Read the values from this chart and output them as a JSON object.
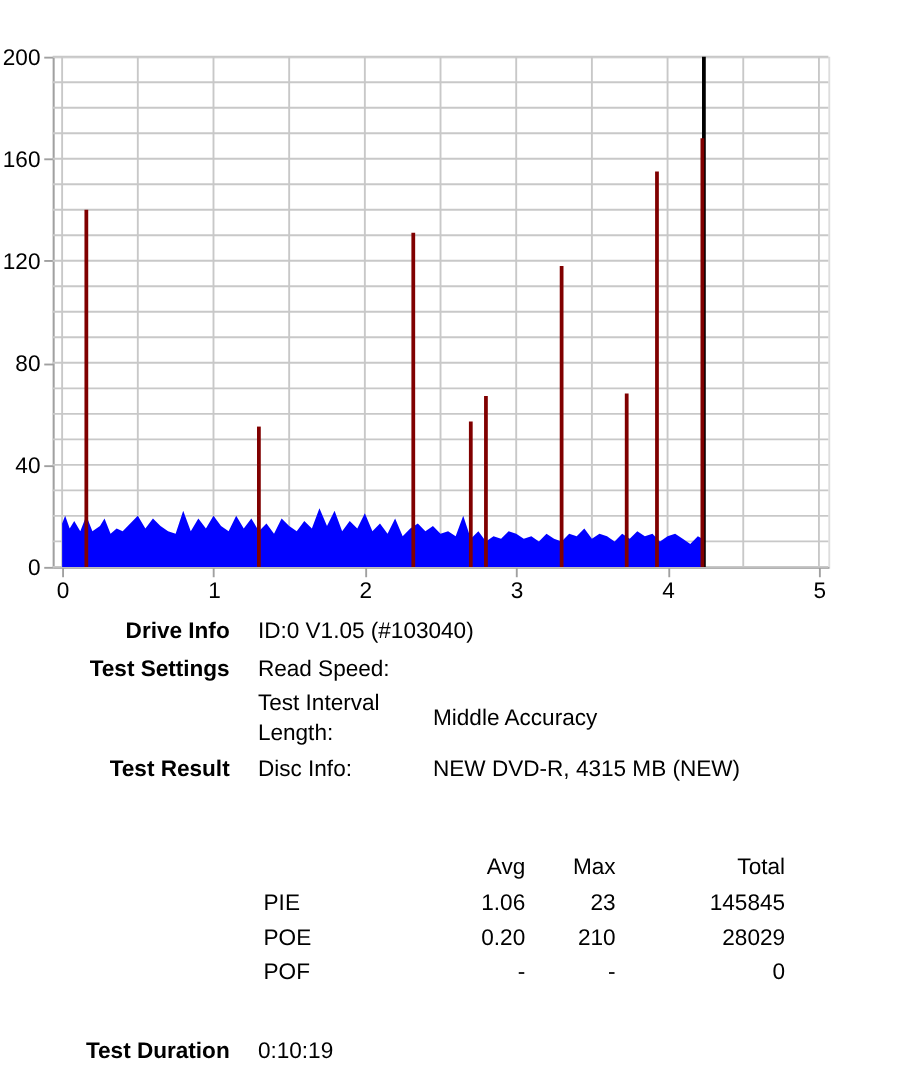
{
  "chart_data": [
    {
      "type": "area",
      "xlim": [
        0,
        5
      ],
      "ylim": [
        0,
        200
      ],
      "xticks": [
        0,
        {
          "value": 0.5,
          "label": null
        },
        1,
        {
          "value": 1.5,
          "label": null
        },
        2,
        {
          "value": 2.5,
          "label": null
        },
        3,
        {
          "value": 3.5,
          "label": null
        },
        4,
        {
          "value": 4.5,
          "label": null
        },
        5
      ],
      "yticks": [
        0,
        {
          "value": 10,
          "label": null
        },
        {
          "value": 20,
          "label": null
        },
        {
          "value": 30,
          "label": null
        },
        40,
        {
          "value": 50,
          "label": null
        },
        {
          "value": 60,
          "label": null
        },
        {
          "value": 70,
          "label": null
        },
        80,
        {
          "value": 90,
          "label": null
        },
        {
          "value": 100,
          "label": null
        },
        {
          "value": 110,
          "label": null
        },
        120,
        {
          "value": 130,
          "label": null
        },
        {
          "value": 140,
          "label": null
        },
        {
          "value": 150,
          "label": null
        },
        160,
        {
          "value": 170,
          "label": null
        },
        {
          "value": 180,
          "label": null
        },
        {
          "value": 190,
          "label": null
        },
        200
      ],
      "grid": true,
      "series": [
        {
          "type": "area",
          "color": "#0000ff",
          "x": [
            0,
            0.02,
            0.05,
            0.08,
            0.12,
            0.16,
            0.2,
            0.25,
            0.28,
            0.32,
            0.36,
            0.4,
            0.45,
            0.5,
            0.55,
            0.6,
            0.65,
            0.7,
            0.75,
            0.8,
            0.85,
            0.9,
            0.95,
            1.0,
            1.05,
            1.1,
            1.15,
            1.2,
            1.25,
            1.3,
            1.35,
            1.4,
            1.45,
            1.5,
            1.55,
            1.6,
            1.65,
            1.7,
            1.75,
            1.8,
            1.85,
            1.9,
            1.95,
            2.0,
            2.05,
            2.1,
            2.15,
            2.2,
            2.25,
            2.3,
            2.35,
            2.4,
            2.45,
            2.5,
            2.55,
            2.6,
            2.65,
            2.7,
            2.75,
            2.8,
            2.85,
            2.9,
            2.95,
            3.0,
            3.05,
            3.1,
            3.15,
            3.2,
            3.25,
            3.3,
            3.35,
            3.4,
            3.45,
            3.5,
            3.55,
            3.6,
            3.65,
            3.7,
            3.75,
            3.8,
            3.85,
            3.9,
            3.95,
            4.0,
            4.05,
            4.1,
            4.15,
            4.2,
            4.23
          ],
          "values": [
            17,
            20,
            15,
            18,
            14,
            20,
            14,
            16,
            19,
            13,
            15,
            14,
            17,
            20,
            15,
            19,
            16,
            14,
            13,
            22,
            14,
            19,
            15,
            20,
            16,
            14,
            20,
            15,
            19,
            14,
            17,
            13,
            19,
            16,
            14,
            18,
            15,
            23,
            16,
            22,
            14,
            18,
            15,
            21,
            14,
            17,
            13,
            19,
            12,
            15,
            17,
            14,
            16,
            13,
            14,
            12,
            20,
            11,
            14,
            10,
            12,
            11,
            14,
            13,
            11,
            12,
            10,
            13,
            11,
            10,
            13,
            12,
            15,
            11,
            13,
            12,
            10,
            13,
            11,
            14,
            12,
            13,
            10,
            12,
            13,
            11,
            9,
            12,
            11
          ]
        },
        {
          "type": "bar",
          "color": "#800000",
          "x": [
            0.16,
            1.3,
            2.32,
            2.7,
            2.8,
            3.3,
            3.73,
            3.93,
            4.23
          ],
          "values": [
            140,
            55,
            131,
            57,
            67,
            118,
            68,
            155,
            168
          ]
        }
      ],
      "ref_lines": [
        {
          "axis": "x",
          "value": 4.24,
          "color": "#000000"
        }
      ]
    },
    {
      "type": "other",
      "annotations": [
        "Drive Info",
        "ID:0 V1.05 (#103040)",
        "Test Settings",
        "Read Speed:",
        "Test Interval Length:",
        "Middle Accuracy",
        "Test Result",
        "Disc Info:",
        "NEW DVD-R, 4315 MB (NEW)",
        "Avg",
        "Max",
        "Total",
        "PIE",
        "1.06",
        "23",
        "145845",
        "POE",
        "0.20",
        "210",
        "28029",
        "POF",
        "-",
        "-",
        "0",
        "Test Duration",
        "0:10:19"
      ]
    }
  ]
}
